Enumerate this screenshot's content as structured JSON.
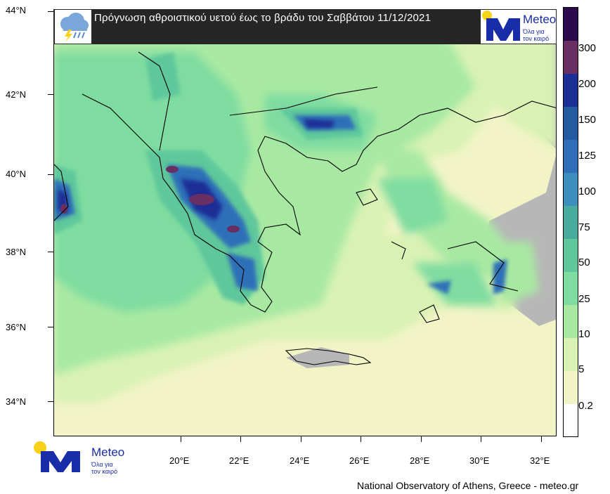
{
  "title": "Πρόγνωση αθροιστικού  υετού έως το βράδυ του Σαββάτου 11/12/2021",
  "icons": {
    "rain": "rain-cloud-icon",
    "logo_sun": "sun-icon",
    "logo_m": "meteo-m-icon"
  },
  "logo": {
    "name": "Meteo",
    "tagline_1": "Όλα για",
    "tagline_2": "τον καιρό"
  },
  "axes": {
    "lat_labels": [
      "44°N",
      "42°N",
      "40°N",
      "38°N",
      "36°N",
      "34°N"
    ],
    "lon_labels": [
      "20°E",
      "22°E",
      "24°E",
      "26°E",
      "28°E",
      "30°E",
      "32°E"
    ]
  },
  "colorbar": {
    "levels": [
      "0.2",
      "5",
      "10",
      "25",
      "50",
      "75",
      "100",
      "125",
      "150",
      "200",
      "300"
    ],
    "colors": [
      "#ffffff",
      "#f2f4c6",
      "#d9f2b4",
      "#a8e9a2",
      "#7fdca0",
      "#5fc79b",
      "#48ab9e",
      "#3c8fbc",
      "#2f6fb8",
      "#235aa0",
      "#1c2f96",
      "#6a2f62",
      "#2a0a4c"
    ]
  },
  "colors": {
    "land_gray": "#b7b7b7",
    "title_bg": "#262626",
    "brand_blue": "#1a2da8",
    "brand_yellow": "#f7d21a"
  },
  "credit": "National Observatory of Athens, Greece - meteo.gr"
}
